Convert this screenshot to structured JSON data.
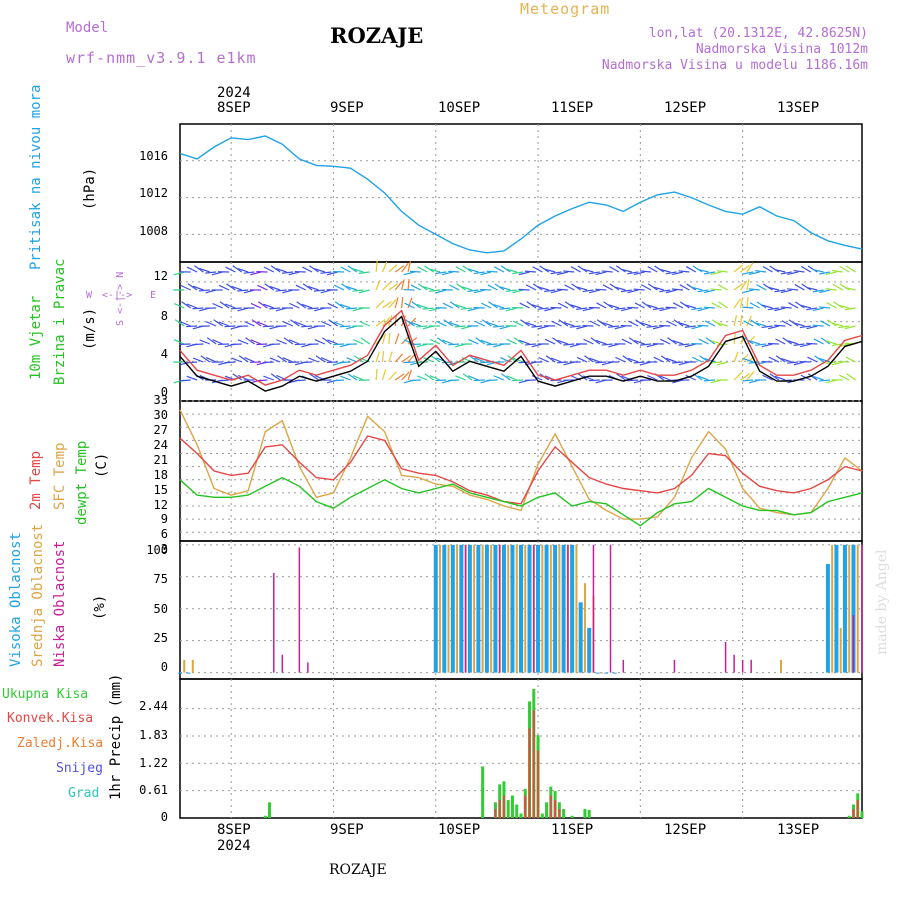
{
  "header": {
    "model_label": "Model",
    "model_name": "wrf-nmm_v3.9.1 e1km",
    "title": "ROZAJE",
    "meteogram": "Meteogram",
    "coords": "lon,lat (20.1312E, 42.8625N)",
    "altitude": "Nadmorska Visina 1012m",
    "model_altitude": "Nadmorska Visina u modelu 1186.16m"
  },
  "time_axis": {
    "year": "2024",
    "days": [
      "8SEP",
      "9SEP",
      "10SEP",
      "11SEP",
      "12SEP",
      "13SEP"
    ]
  },
  "footer": {
    "location": "ROZAJE",
    "watermark": "made by Angel"
  },
  "panels": {
    "pressure": {
      "label": "Pritisak na nivou mora",
      "unit": "(hPa)",
      "ticks": [
        "1016",
        "1012",
        "1008"
      ]
    },
    "wind": {
      "label1": "10m Vjetar",
      "label2": "Brzina i Pravac",
      "unit": "(m/s)",
      "ticks": [
        "12",
        "8",
        "4",
        "0"
      ],
      "compass_n": "N",
      "compass_w": "W",
      "compass_e": "E",
      "compass_s": "S",
      "compass_line": "<-|->"
    },
    "temperature": {
      "label1": "2m Temp",
      "label2": "SFC Temp",
      "label3": "dewpt Temp",
      "unit": "(C)",
      "ticks": [
        "33",
        "30",
        "27",
        "24",
        "21",
        "18",
        "15",
        "12",
        "9",
        "6",
        "3"
      ]
    },
    "clouds": {
      "label1": "Visoka Oblacnost",
      "label2": "Srednja Oblacnost",
      "label3": "Niska Oblacnost",
      "unit": "(%)",
      "ticks": [
        "100",
        "75",
        "50",
        "25",
        "0"
      ]
    },
    "precip": {
      "unit": "1hr Precip (mm)",
      "ticks": [
        "2.44",
        "1.83",
        "1.22",
        "0.61",
        "0"
      ],
      "legend": [
        "Ukupna Kisa",
        "Konvek.Kisa",
        "Zaledj.Kisa",
        "Snijeg",
        "Grad"
      ]
    }
  },
  "colors": {
    "pressure": "#1fa2e6",
    "temp2m": "#e64646",
    "sfc": "#dca546",
    "dewpt": "#22c41e",
    "cloud_high": "#1fa2e6",
    "cloud_mid": "#dca546",
    "cloud_low": "#c81e96",
    "rain_total": "#33cc33",
    "rain_conv": "#e64646",
    "rain_frz": "#f07d32",
    "snow": "#5050e6",
    "hail": "#2dc8b4",
    "label_violet": "#b46ed2"
  },
  "chart_data": [
    {
      "type": "line",
      "name": "pressure",
      "ylim": [
        1005,
        1020
      ],
      "x_unit": "hours from 8 SEP 00Z",
      "x": [
        -12,
        -8,
        -4,
        0,
        4,
        8,
        12,
        16,
        20,
        24,
        28,
        32,
        36,
        40,
        44,
        48,
        52,
        56,
        60,
        64,
        68,
        72,
        76,
        80,
        84,
        88,
        92,
        96,
        100,
        104,
        108,
        112,
        116,
        120,
        124,
        128,
        132,
        136,
        140,
        144,
        148
      ],
      "series": [
        {
          "values": [
            1016.8,
            1016.2,
            1017.5,
            1018.5,
            1018.3,
            1018.7,
            1017.8,
            1016.2,
            1015.5,
            1015.4,
            1015.2,
            1014.0,
            1012.5,
            1010.5,
            1009.0,
            1008.0,
            1007.0,
            1006.3,
            1006.0,
            1006.2,
            1007.5,
            1009.0,
            1010.0,
            1010.8,
            1011.5,
            1011.2,
            1010.5,
            1011.5,
            1012.3,
            1012.6,
            1012.0,
            1011.2,
            1010.5,
            1010.2,
            1011.0,
            1010.0,
            1009.5,
            1008.2,
            1007.3,
            1006.8,
            1006.4
          ]
        }
      ]
    },
    {
      "type": "line",
      "name": "temperature",
      "ylim": [
        1,
        33
      ],
      "x_unit": "hours from 8 SEP 00Z",
      "x": [
        -12,
        -8,
        -4,
        0,
        4,
        8,
        12,
        16,
        20,
        24,
        28,
        32,
        36,
        40,
        44,
        48,
        52,
        56,
        60,
        64,
        68,
        72,
        76,
        80,
        84,
        88,
        92,
        96,
        100,
        104,
        108,
        112,
        116,
        120,
        124,
        128,
        132,
        136,
        140,
        144,
        148
      ],
      "series": [
        {
          "name": "2m Temp",
          "values": [
            24.5,
            21.0,
            17.0,
            16.0,
            16.5,
            22.5,
            23.0,
            19.0,
            15.5,
            15.0,
            19.0,
            25.0,
            24.0,
            17.5,
            16.5,
            16.0,
            14.5,
            12.5,
            11.5,
            10.0,
            9.5,
            17.0,
            22.5,
            19.0,
            15.5,
            14.0,
            13.0,
            12.5,
            12.0,
            13.0,
            16.0,
            21.0,
            20.5,
            16.5,
            13.5,
            12.5,
            12.0,
            13.0,
            15.0,
            18.0,
            17.0
          ]
        },
        {
          "name": "SFC Temp",
          "values": [
            31.0,
            23.0,
            13.0,
            11.5,
            12.5,
            26.0,
            28.5,
            18.0,
            11.0,
            12.0,
            20.0,
            29.5,
            26.0,
            16.0,
            15.5,
            14.0,
            13.5,
            11.5,
            10.5,
            9.0,
            8.0,
            18.5,
            25.5,
            18.0,
            10.5,
            8.0,
            6.0,
            6.0,
            6.5,
            11.0,
            20.0,
            26.0,
            22.0,
            13.0,
            8.5,
            7.5,
            7.0,
            7.5,
            13.0,
            20.0,
            17.0
          ]
        },
        {
          "name": "dewpt Temp",
          "values": [
            15.0,
            11.5,
            11.0,
            11.0,
            11.5,
            13.5,
            15.5,
            13.5,
            10.0,
            8.5,
            11.0,
            13.0,
            15.0,
            13.0,
            12.0,
            13.0,
            14.0,
            12.0,
            11.0,
            10.0,
            9.0,
            11.0,
            12.0,
            9.0,
            10.0,
            9.5,
            7.0,
            4.5,
            7.5,
            9.5,
            10.0,
            13.0,
            11.0,
            9.0,
            8.0,
            8.0,
            7.0,
            7.5,
            10.0,
            11.0,
            12.0
          ]
        }
      ]
    },
    {
      "type": "line",
      "name": "wind_speed",
      "ylim": [
        0,
        14
      ],
      "x_unit": "hours from 8 SEP 00Z",
      "x": [
        -12,
        -8,
        -4,
        0,
        4,
        8,
        12,
        16,
        20,
        24,
        28,
        32,
        36,
        40,
        44,
        48,
        52,
        56,
        60,
        64,
        68,
        72,
        76,
        80,
        84,
        88,
        92,
        96,
        100,
        104,
        108,
        112,
        116,
        120,
        124,
        128,
        132,
        136,
        140,
        144,
        148
      ],
      "series": [
        {
          "values": [
            4.5,
            2.5,
            2.0,
            1.5,
            2.0,
            1.0,
            1.5,
            2.5,
            2.0,
            2.5,
            3.0,
            4.0,
            7.0,
            8.5,
            3.5,
            5.0,
            3.0,
            4.0,
            3.5,
            3.0,
            4.5,
            2.0,
            1.5,
            2.0,
            2.5,
            2.5,
            2.0,
            2.5,
            2.0,
            2.0,
            2.5,
            3.5,
            6.0,
            6.5,
            3.0,
            2.0,
            2.0,
            2.5,
            3.5,
            5.5,
            6.0
          ]
        }
      ]
    },
    {
      "type": "bar",
      "name": "clouds",
      "ylim": [
        0,
        100
      ],
      "x_unit": "hours from 8 SEP 00Z",
      "series": [
        {
          "name": "Visoka Oblacnost",
          "x": [
            -12,
            -10,
            48,
            50,
            52,
            54,
            56,
            58,
            60,
            62,
            64,
            66,
            68,
            70,
            72,
            74,
            76,
            78,
            80,
            82,
            84,
            86,
            88,
            90,
            140,
            142,
            144,
            146
          ],
          "values": [
            0,
            0,
            100,
            100,
            100,
            100,
            100,
            100,
            100,
            100,
            100,
            100,
            100,
            100,
            100,
            100,
            100,
            100,
            100,
            55,
            35,
            0,
            0,
            0,
            85,
            100,
            100,
            100
          ]
        },
        {
          "name": "Srednja Oblacnost",
          "x": [
            -11,
            -9,
            49,
            51,
            53,
            55,
            57,
            59,
            61,
            63,
            65,
            67,
            69,
            71,
            73,
            75,
            77,
            79,
            81,
            83,
            85,
            87,
            129,
            141,
            143,
            145,
            147
          ],
          "values": [
            10,
            10,
            100,
            100,
            100,
            100,
            100,
            100,
            100,
            100,
            100,
            100,
            100,
            100,
            100,
            100,
            100,
            100,
            100,
            70,
            60,
            0,
            10,
            100,
            35,
            100,
            100
          ]
        },
        {
          "name": "Niska Oblacnost",
          "x": [
            10,
            12,
            16,
            18,
            55,
            63,
            71,
            79,
            85,
            89,
            92,
            104,
            116,
            118,
            120,
            122,
            146,
            148
          ],
          "values": [
            78,
            14,
            98,
            8,
            100,
            100,
            100,
            100,
            100,
            100,
            10,
            10,
            24,
            14,
            10,
            10,
            45,
            100
          ]
        }
      ]
    },
    {
      "type": "bar",
      "name": "precip",
      "ylim": [
        0,
        3.1
      ],
      "x_unit": "hours from 8 SEP 00Z",
      "series": [
        {
          "name": "Ukupna Kisa",
          "x": [
            8,
            9,
            59,
            62,
            63,
            64,
            65,
            66,
            67,
            68,
            69,
            70,
            71,
            72,
            73,
            74,
            75,
            76,
            77,
            78,
            80,
            83,
            84,
            145,
            146,
            147,
            148
          ],
          "values": [
            0.05,
            0.35,
            1.15,
            0.35,
            0.75,
            0.82,
            0.4,
            0.5,
            0.3,
            0.1,
            0.65,
            2.6,
            2.88,
            1.85,
            0.1,
            0.35,
            0.7,
            0.6,
            0.35,
            0.2,
            0.05,
            0.2,
            0.18,
            0.05,
            0.3,
            0.55,
            0.15
          ]
        },
        {
          "name": "Konvek.Kisa",
          "x": [
            62,
            63,
            64,
            69,
            70,
            71,
            72,
            75,
            76,
            77,
            146,
            147
          ],
          "values": [
            0.2,
            0.4,
            0.5,
            0.5,
            2.0,
            2.4,
            1.5,
            0.5,
            0.4,
            0.2,
            0.2,
            0.4
          ]
        }
      ]
    }
  ]
}
